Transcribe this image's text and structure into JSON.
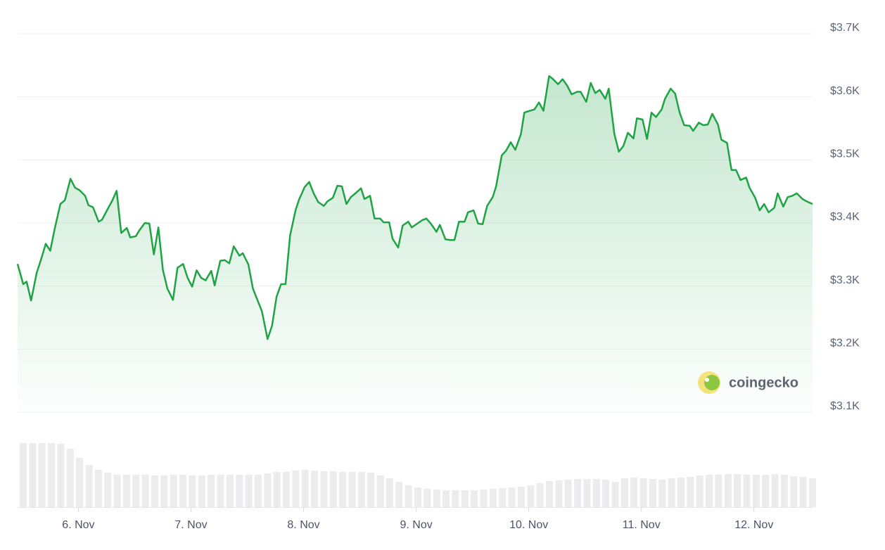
{
  "chart_data": [
    {
      "type": "line",
      "x": [
        5.46,
        5.51,
        5.54,
        5.58,
        5.63,
        5.67,
        5.71,
        5.75,
        5.79,
        5.84,
        5.88,
        5.93,
        5.97,
        6.01,
        6.06,
        6.09,
        6.13,
        6.18,
        6.21,
        6.26,
        6.3,
        6.34,
        6.38,
        6.43,
        6.46,
        6.51,
        6.54,
        6.59,
        6.63,
        6.67,
        6.71,
        6.75,
        6.79,
        6.84,
        6.88,
        6.93,
        6.97,
        7.01,
        7.05,
        7.09,
        7.13,
        7.18,
        7.21,
        7.26,
        7.3,
        7.34,
        7.38,
        7.43,
        7.46,
        7.51,
        7.55,
        7.59,
        7.63,
        7.68,
        7.72,
        7.76,
        7.8,
        7.84,
        7.88,
        7.93,
        7.96,
        8.01,
        8.05,
        8.09,
        8.13,
        8.18,
        8.21,
        8.26,
        8.3,
        8.34,
        8.38,
        8.42,
        8.46,
        8.51,
        8.54,
        8.59,
        8.63,
        8.68,
        8.71,
        8.76,
        8.79,
        8.84,
        8.88,
        8.93,
        8.96,
        9.01,
        9.05,
        9.09,
        9.13,
        9.18,
        9.21,
        9.26,
        9.3,
        9.34,
        9.38,
        9.43,
        9.46,
        9.51,
        9.55,
        9.59,
        9.63,
        9.68,
        9.71,
        9.76,
        9.8,
        9.84,
        9.88,
        9.93,
        9.96,
        10.01,
        10.05,
        10.09,
        10.13,
        10.18,
        10.21,
        10.26,
        10.3,
        10.34,
        10.38,
        10.43,
        10.46,
        10.51,
        10.55,
        10.59,
        10.63,
        10.68,
        10.71,
        10.76,
        10.8,
        10.84,
        10.88,
        10.93,
        10.96,
        11.01,
        11.05,
        11.09,
        11.13,
        11.18,
        11.21,
        11.26,
        11.3,
        11.34,
        11.38,
        11.43,
        11.46,
        11.51,
        11.55,
        11.59,
        11.63,
        11.68,
        11.71,
        11.76,
        11.8,
        11.84,
        11.88,
        11.93,
        11.96,
        12.01,
        12.05,
        12.09,
        12.13,
        12.18,
        12.21,
        12.26,
        12.3,
        12.34,
        12.38,
        12.43,
        12.46,
        12.52
      ],
      "series": [
        {
          "color": "#1fa345",
          "values": [
            3335,
            3303,
            3307,
            3277,
            3321,
            3343,
            3367,
            3356,
            3391,
            3430,
            3436,
            3470,
            3456,
            3452,
            3443,
            3428,
            3425,
            3402,
            3405,
            3422,
            3435,
            3451,
            3384,
            3392,
            3377,
            3379,
            3388,
            3400,
            3399,
            3350,
            3393,
            3326,
            3296,
            3278,
            3329,
            3335,
            3313,
            3299,
            3325,
            3313,
            3309,
            3324,
            3301,
            3340,
            3341,
            3336,
            3363,
            3348,
            3352,
            3334,
            3296,
            3278,
            3260,
            3216,
            3237,
            3283,
            3303,
            3303,
            3380,
            3421,
            3437,
            3457,
            3465,
            3447,
            3433,
            3427,
            3434,
            3440,
            3459,
            3458,
            3430,
            3441,
            3447,
            3455,
            3438,
            3443,
            3407,
            3407,
            3401,
            3401,
            3375,
            3361,
            3396,
            3402,
            3393,
            3399,
            3404,
            3407,
            3399,
            3386,
            3397,
            3374,
            3373,
            3373,
            3402,
            3402,
            3417,
            3420,
            3399,
            3398,
            3427,
            3441,
            3458,
            3507,
            3515,
            3528,
            3516,
            3541,
            3575,
            3578,
            3580,
            3591,
            3578,
            3633,
            3629,
            3620,
            3628,
            3618,
            3604,
            3608,
            3608,
            3592,
            3622,
            3606,
            3611,
            3597,
            3613,
            3541,
            3513,
            3522,
            3543,
            3534,
            3566,
            3564,
            3533,
            3575,
            3568,
            3580,
            3597,
            3613,
            3605,
            3575,
            3555,
            3554,
            3546,
            3559,
            3555,
            3556,
            3573,
            3556,
            3532,
            3527,
            3484,
            3484,
            3468,
            3472,
            3456,
            3440,
            3420,
            3430,
            3417,
            3424,
            3447,
            3426,
            3441,
            3443,
            3447,
            3438,
            3435,
            3430
          ]
        }
      ],
      "xlim": [
        5.46,
        12.52
      ],
      "xticks": [
        {
          "value": 6,
          "label": "6. Nov"
        },
        {
          "value": 7,
          "label": "7. Nov"
        },
        {
          "value": 8,
          "label": "8. Nov"
        },
        {
          "value": 9,
          "label": "9. Nov"
        },
        {
          "value": 10,
          "label": "10. Nov"
        },
        {
          "value": 11,
          "label": "11. Nov"
        },
        {
          "value": 12,
          "label": "12. Nov"
        }
      ],
      "ylim": [
        3100,
        3700
      ],
      "yticks": [
        {
          "value": 3100,
          "label": "$3.1K"
        },
        {
          "value": 3200,
          "label": "$3.2K"
        },
        {
          "value": 3300,
          "label": "$3.3K"
        },
        {
          "value": 3400,
          "label": "$3.4K"
        },
        {
          "value": 3500,
          "label": "$3.5K"
        },
        {
          "value": 3600,
          "label": "$3.6K"
        },
        {
          "value": 3700,
          "label": "$3.7K"
        }
      ],
      "grid": true
    },
    {
      "type": "bar",
      "color": "#ececee",
      "ylim": [
        0,
        100
      ],
      "values": [
        91,
        91,
        91,
        91,
        90,
        83,
        70,
        60,
        53,
        49,
        46,
        46,
        46,
        46,
        45,
        45,
        46,
        46,
        45,
        45,
        46,
        46,
        46,
        46,
        46,
        46,
        48,
        50,
        50,
        52,
        53,
        52,
        51,
        51,
        50,
        50,
        50,
        49,
        45,
        41,
        36,
        31,
        28,
        26,
        25,
        24,
        24,
        24,
        24,
        25,
        26,
        27,
        28,
        29,
        31,
        34,
        37,
        38,
        39,
        40,
        40,
        40,
        39,
        36,
        41,
        42,
        41,
        40,
        39,
        41,
        42,
        43,
        45,
        46,
        46,
        47,
        47,
        46,
        46,
        46,
        47,
        46,
        44,
        43,
        41
      ]
    }
  ],
  "watermark": "coingecko"
}
